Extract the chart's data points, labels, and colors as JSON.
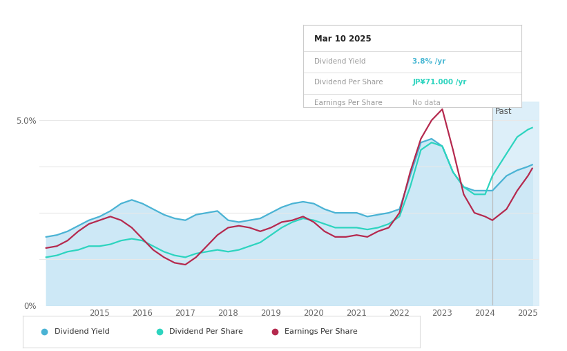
{
  "bg_color": "#ffffff",
  "plot_bg_color": "#ffffff",
  "grid_color": "#e8e8e8",
  "x_ticks": [
    2015,
    2016,
    2017,
    2018,
    2019,
    2020,
    2021,
    2022,
    2023,
    2024,
    2025
  ],
  "past_x": 2024.17,
  "tooltip": {
    "date": "Mar 10 2025",
    "dividend_yield_label": "Dividend Yield",
    "dividend_yield_value": "3.8%",
    "dividend_yield_suffix": " /yr",
    "dividend_yield_color": "#4ab8d4",
    "dividend_per_share_label": "Dividend Per Share",
    "dividend_per_share_value": "JP¥71.000",
    "dividend_per_share_suffix": " /yr",
    "dividend_per_share_color": "#2dd4bf",
    "earnings_per_share_label": "Earnings Per Share",
    "earnings_per_share_value": "No data",
    "earnings_per_share_color": "#aaaaaa"
  },
  "div_yield_color": "#4ab3d4",
  "div_yield_fill_color": "#c8e6f5",
  "div_per_share_color": "#2dd4bf",
  "eps_color": "#b5294e",
  "past_fill_color": "#d8edf8",
  "t": [
    2013.75,
    2014.0,
    2014.25,
    2014.5,
    2014.75,
    2015.0,
    2015.25,
    2015.5,
    2015.75,
    2016.0,
    2016.25,
    2016.5,
    2016.75,
    2017.0,
    2017.25,
    2017.5,
    2017.75,
    2018.0,
    2018.25,
    2018.5,
    2018.75,
    2019.0,
    2019.25,
    2019.5,
    2019.75,
    2020.0,
    2020.25,
    2020.5,
    2020.75,
    2021.0,
    2021.25,
    2021.5,
    2021.75,
    2022.0,
    2022.25,
    2022.5,
    2022.75,
    2023.0,
    2023.25,
    2023.5,
    2023.75,
    2024.0,
    2024.17,
    2024.5,
    2024.75,
    2025.0,
    2025.1
  ],
  "div_yield": [
    1.85,
    1.9,
    2.0,
    2.15,
    2.3,
    2.4,
    2.55,
    2.75,
    2.85,
    2.75,
    2.6,
    2.45,
    2.35,
    2.3,
    2.45,
    2.5,
    2.55,
    2.3,
    2.25,
    2.3,
    2.35,
    2.5,
    2.65,
    2.75,
    2.8,
    2.75,
    2.6,
    2.5,
    2.5,
    2.5,
    2.4,
    2.45,
    2.5,
    2.6,
    3.5,
    4.4,
    4.5,
    4.3,
    3.6,
    3.2,
    3.1,
    3.1,
    3.1,
    3.5,
    3.65,
    3.75,
    3.8
  ],
  "div_per_share": [
    1.3,
    1.35,
    1.45,
    1.5,
    1.6,
    1.6,
    1.65,
    1.75,
    1.8,
    1.75,
    1.6,
    1.45,
    1.35,
    1.3,
    1.4,
    1.45,
    1.5,
    1.45,
    1.5,
    1.6,
    1.7,
    1.9,
    2.1,
    2.25,
    2.35,
    2.3,
    2.2,
    2.1,
    2.1,
    2.1,
    2.05,
    2.1,
    2.2,
    2.4,
    3.2,
    4.2,
    4.4,
    4.3,
    3.6,
    3.2,
    3.0,
    3.0,
    3.5,
    4.1,
    4.55,
    4.75,
    4.8
  ],
  "eps": [
    1.55,
    1.6,
    1.75,
    2.0,
    2.2,
    2.3,
    2.4,
    2.3,
    2.1,
    1.8,
    1.5,
    1.3,
    1.15,
    1.1,
    1.3,
    1.6,
    1.9,
    2.1,
    2.15,
    2.1,
    2.0,
    2.1,
    2.25,
    2.3,
    2.4,
    2.25,
    2.0,
    1.85,
    1.85,
    1.9,
    1.85,
    2.0,
    2.1,
    2.5,
    3.6,
    4.5,
    5.0,
    5.3,
    4.2,
    3.0,
    2.5,
    2.4,
    2.3,
    2.6,
    3.1,
    3.5,
    3.7
  ],
  "ylim": [
    0,
    5.5
  ],
  "xlim": [
    2013.6,
    2025.25
  ],
  "legend": [
    {
      "label": "Dividend Yield",
      "color": "#4ab3d4"
    },
    {
      "label": "Dividend Per Share",
      "color": "#2dd4bf"
    },
    {
      "label": "Earnings Per Share",
      "color": "#b5294e"
    }
  ]
}
